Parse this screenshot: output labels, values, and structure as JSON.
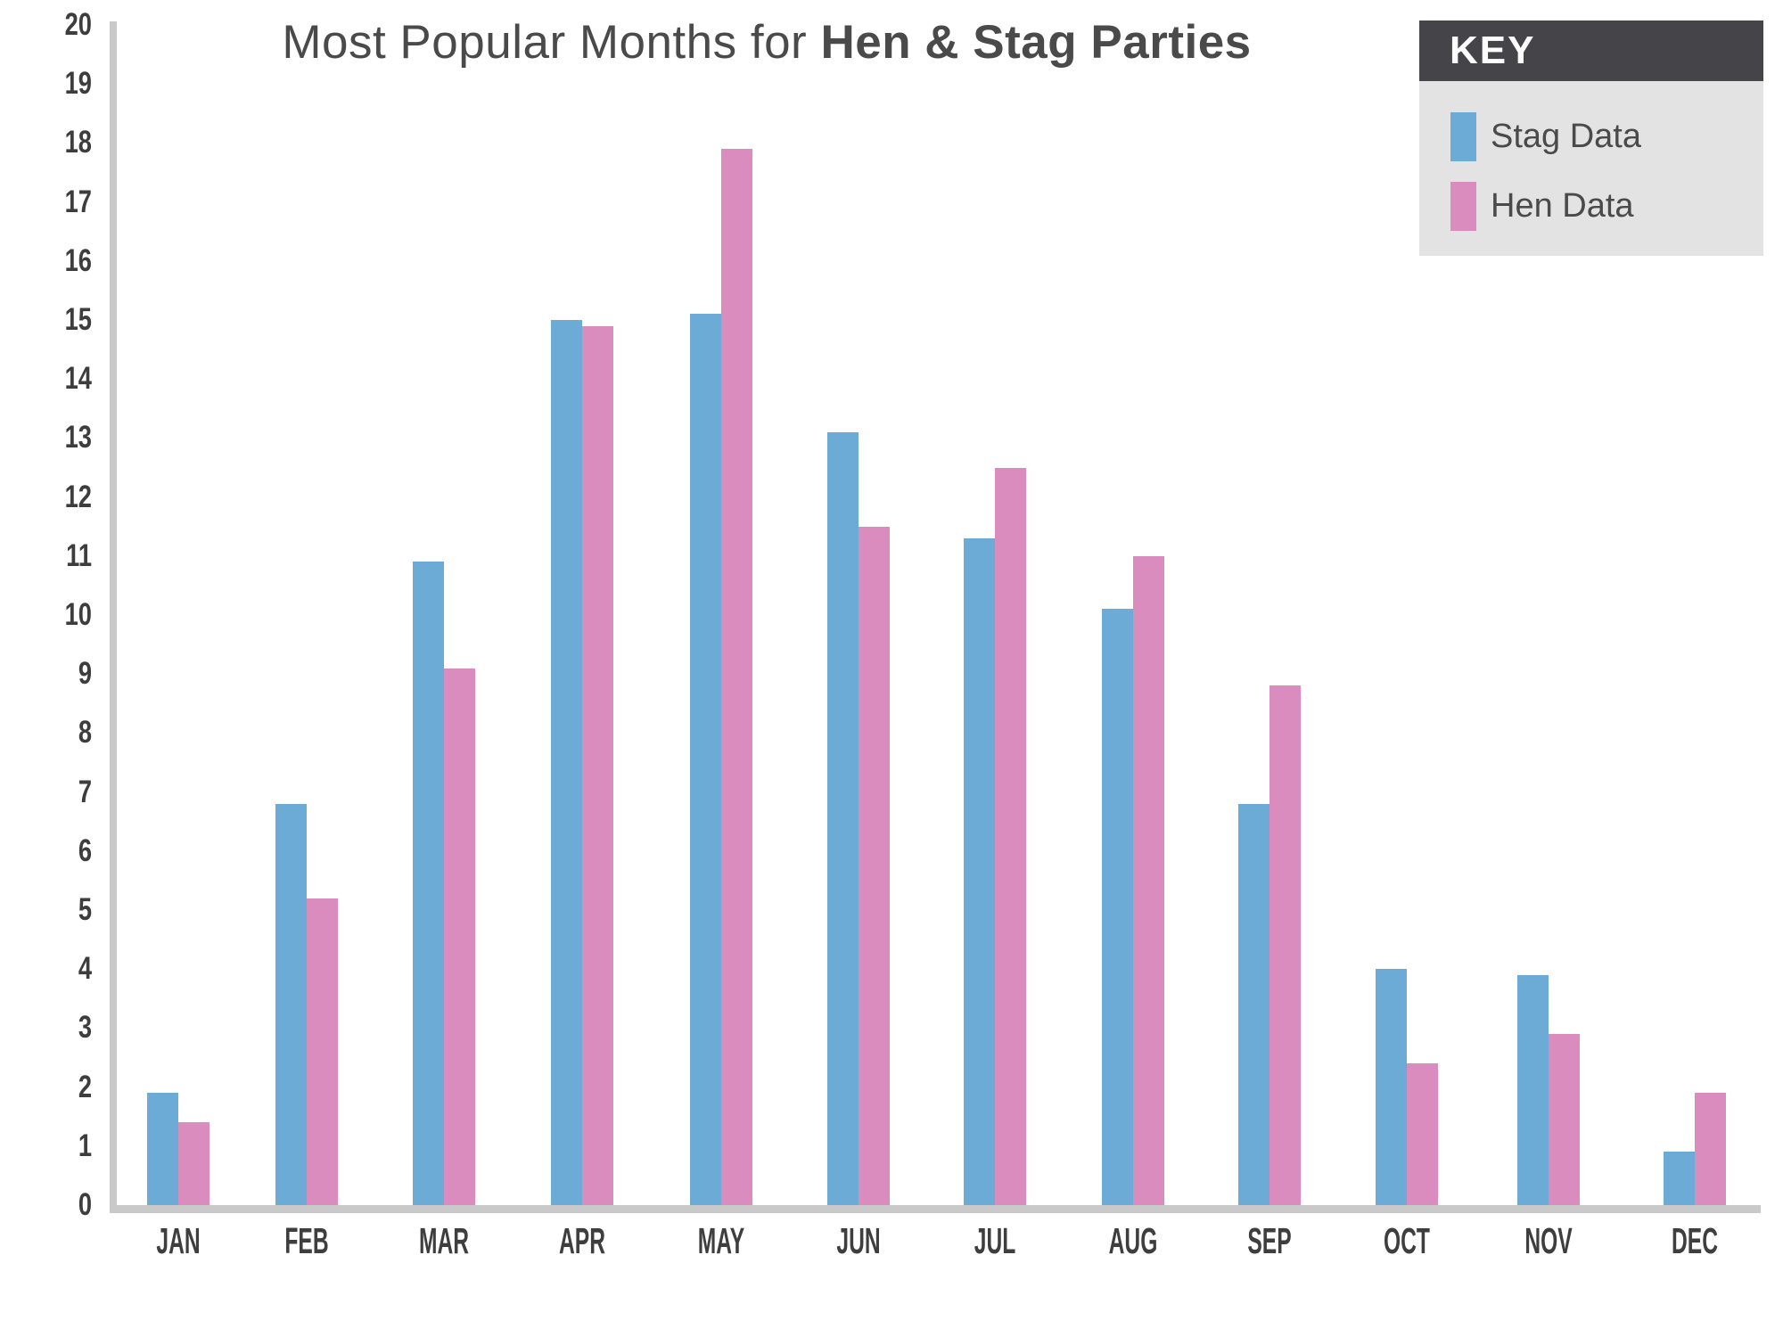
{
  "title": {
    "regular": "Most Popular Months for ",
    "bold": "Hen & Stag Parties"
  },
  "key": {
    "header": "KEY",
    "items": [
      {
        "label": "Stag Data",
        "color": "#6babd5"
      },
      {
        "label": "Hen Data",
        "color": "#db8cbf"
      }
    ]
  },
  "palette": {
    "stag_blue": "#6babd5",
    "hen_pink": "#db8cbf",
    "axis_line": "#c9c9c9",
    "text_dark": "#3e3e3e",
    "title_text": "#4a4a4a",
    "key_header_bg": "#454549",
    "key_body_bg": "#e4e3e4"
  },
  "chart_data": {
    "type": "bar",
    "title": "Most Popular Months for Hen & Stag Parties",
    "xlabel": "",
    "ylabel": "",
    "categories": [
      "JAN",
      "FEB",
      "MAR",
      "APR",
      "MAY",
      "JUN",
      "JUL",
      "AUG",
      "SEP",
      "OCT",
      "NOV",
      "DEC"
    ],
    "series": [
      {
        "name": "Stag Data",
        "color": "#6babd5",
        "values": [
          1.9,
          6.8,
          10.9,
          15.0,
          15.1,
          13.1,
          11.3,
          10.1,
          6.8,
          4.0,
          3.9,
          0.9
        ]
      },
      {
        "name": "Hen Data",
        "color": "#db8cbf",
        "values": [
          1.4,
          5.2,
          9.1,
          14.9,
          17.9,
          11.5,
          12.5,
          11.0,
          8.8,
          2.4,
          2.9,
          1.9
        ]
      }
    ],
    "ylim": [
      0,
      20
    ],
    "ytick_step": 1,
    "yticks": [
      0,
      1,
      2,
      3,
      4,
      5,
      6,
      7,
      8,
      9,
      10,
      11,
      12,
      13,
      14,
      15,
      16,
      17,
      18,
      19,
      20
    ],
    "grid": false,
    "legend_position": "top-right"
  }
}
